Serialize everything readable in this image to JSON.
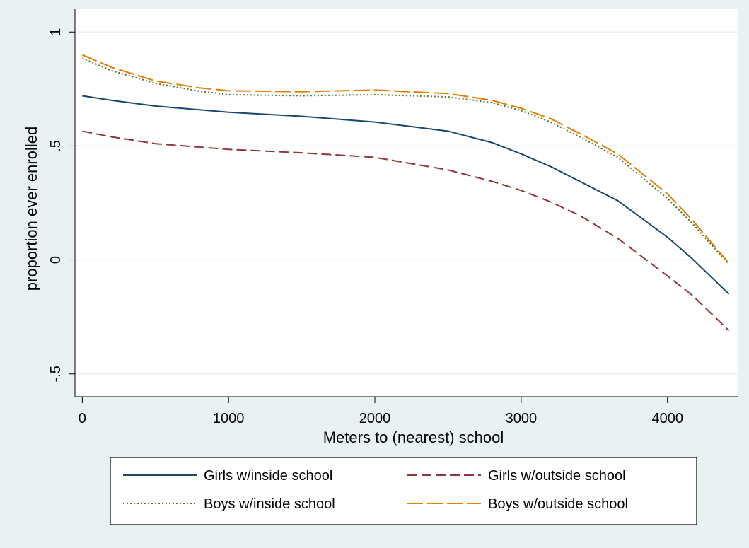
{
  "chart_data": {
    "type": "line",
    "title": "",
    "xlabel": "Meters to (nearest) school",
    "ylabel": "proportion ever enrolled",
    "xlim": [
      -50,
      4480
    ],
    "ylim": [
      -0.6,
      1.1
    ],
    "xticks": [
      0,
      1000,
      2000,
      3000,
      4000
    ],
    "xtick_labels": [
      "0",
      "1000",
      "2000",
      "3000",
      "4000"
    ],
    "yticks": [
      -0.5,
      0,
      0.5,
      1
    ],
    "ytick_labels": [
      "-.5",
      "0",
      ".5",
      "1"
    ],
    "grid": "horizontal",
    "legend_position": "bottom",
    "series": [
      {
        "name": "Girls w/inside school",
        "color": "#1a476f",
        "style": "solid",
        "x": [
          0,
          200,
          500,
          1000,
          1500,
          2000,
          2500,
          2800,
          3000,
          3200,
          3400,
          3660,
          4000,
          4170,
          4420
        ],
        "y": [
          0.72,
          0.7,
          0.675,
          0.648,
          0.63,
          0.605,
          0.565,
          0.515,
          0.465,
          0.41,
          0.345,
          0.26,
          0.1,
          0.005,
          -0.15
        ]
      },
      {
        "name": "Girls w/outside school",
        "color": "#90353b",
        "style": "dash",
        "x": [
          0,
          200,
          500,
          1000,
          1500,
          2000,
          2500,
          2800,
          3000,
          3200,
          3400,
          3660,
          4000,
          4170,
          4420
        ],
        "y": [
          0.565,
          0.54,
          0.51,
          0.485,
          0.47,
          0.45,
          0.395,
          0.345,
          0.305,
          0.255,
          0.195,
          0.095,
          -0.07,
          -0.155,
          -0.31
        ]
      },
      {
        "name": "Boys w/inside school",
        "color": "#55752f",
        "style": "dot",
        "x": [
          0,
          200,
          500,
          800,
          1000,
          1500,
          2000,
          2500,
          2800,
          3000,
          3200,
          3400,
          3660,
          4000,
          4170,
          4420
        ],
        "y": [
          0.885,
          0.83,
          0.775,
          0.74,
          0.725,
          0.72,
          0.725,
          0.715,
          0.69,
          0.655,
          0.605,
          0.54,
          0.45,
          0.27,
          0.16,
          -0.02
        ]
      },
      {
        "name": "Boys w/outside school",
        "color": "#e37e00",
        "style": "longdash",
        "x": [
          0,
          200,
          500,
          800,
          1000,
          1500,
          2000,
          2500,
          2800,
          3000,
          3200,
          3400,
          3660,
          4000,
          4170,
          4420
        ],
        "y": [
          0.9,
          0.845,
          0.785,
          0.755,
          0.742,
          0.738,
          0.745,
          0.73,
          0.7,
          0.665,
          0.62,
          0.555,
          0.465,
          0.29,
          0.175,
          -0.015
        ]
      }
    ]
  }
}
